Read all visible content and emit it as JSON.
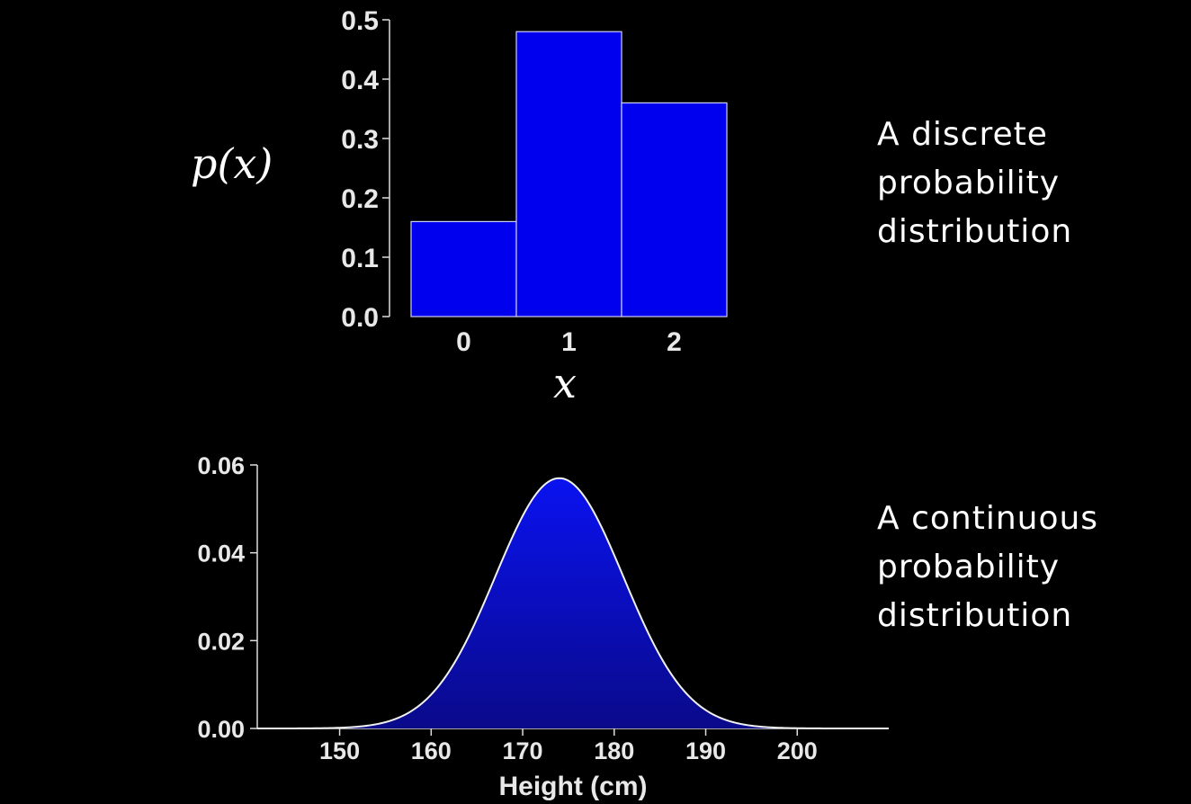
{
  "chart_data": [
    {
      "type": "bar",
      "categories": [
        "0",
        "1",
        "2"
      ],
      "values": [
        0.16,
        0.48,
        0.36
      ],
      "ylabel": "p(x)",
      "xlabel": "x",
      "ylim": [
        0,
        0.5
      ],
      "yticks": [
        "0.0",
        "0.1",
        "0.2",
        "0.3",
        "0.4",
        "0.5"
      ],
      "color": "#0000ee",
      "caption": [
        "A discrete",
        "probability",
        "distribution"
      ]
    },
    {
      "type": "area",
      "distribution": "normal",
      "mean": 174,
      "sd": 7,
      "xlabel": "Height (cm)",
      "xlim": [
        141,
        210
      ],
      "ylim": [
        0,
        0.06
      ],
      "xticks": [
        "150",
        "160",
        "170",
        "180",
        "190",
        "200"
      ],
      "yticks": [
        "0.00",
        "0.02",
        "0.04",
        "0.06"
      ],
      "color": "#0000ee",
      "caption": [
        "A continuous",
        "probability",
        "distribution"
      ]
    }
  ]
}
